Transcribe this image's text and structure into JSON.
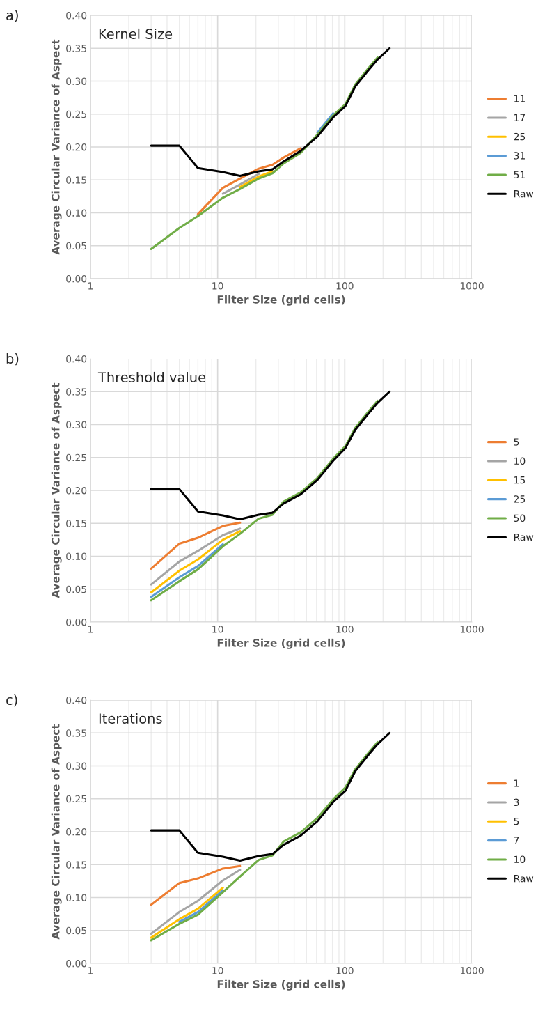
{
  "chart_data": [
    {
      "type": "line",
      "title": "Kernel Size",
      "annotations": [
        "a)"
      ],
      "xlabel": "Filter Size (grid cells)",
      "ylabel": "Average Circular Variance of Aspect",
      "log": "x",
      "xlim": [
        1,
        1000
      ],
      "xticks": [
        1,
        10,
        100,
        1000
      ],
      "ylim": [
        0,
        0.4
      ],
      "yticks": [
        {
          "value": 0,
          "label": "0.00"
        },
        {
          "value": 0.05,
          "label": "0.05"
        },
        {
          "value": 0.1,
          "label": "0.10"
        },
        {
          "value": 0.15,
          "label": "0.15"
        },
        {
          "value": 0.2,
          "label": "0.20"
        },
        {
          "value": 0.25,
          "label": "0.25"
        },
        {
          "value": 0.3,
          "label": "0.30"
        },
        {
          "value": 0.35,
          "label": "0.35"
        },
        {
          "value": 0.4,
          "label": "0.40"
        }
      ],
      "grid": true,
      "legend": "right",
      "line_style": "solid",
      "marker": "none",
      "x": [
        3,
        5,
        7,
        11,
        15,
        21,
        27,
        33,
        45,
        61,
        81,
        101,
        121,
        151,
        181,
        225
      ],
      "series": [
        {
          "name": "11",
          "color": "#ed7d31",
          "values": [
            null,
            null,
            0.098,
            0.138,
            0.152,
            0.167,
            0.173,
            0.184,
            0.198,
            null,
            null,
            null,
            null,
            null,
            null,
            null
          ]
        },
        {
          "name": "17",
          "color": "#a5a5a5",
          "values": [
            null,
            null,
            null,
            0.129,
            0.143,
            0.159,
            null,
            null,
            null,
            null,
            null,
            null,
            null,
            null,
            null,
            null
          ]
        },
        {
          "name": "25",
          "color": "#ffc000",
          "values": [
            null,
            null,
            null,
            null,
            0.139,
            0.155,
            0.163,
            null,
            null,
            null,
            null,
            null,
            null,
            null,
            null,
            null
          ]
        },
        {
          "name": "31",
          "color": "#5b9bd5",
          "values": [
            null,
            null,
            null,
            null,
            null,
            null,
            null,
            null,
            null,
            0.222,
            0.251,
            null,
            null,
            null,
            null,
            null
          ]
        },
        {
          "name": "51",
          "color": "#70ad47",
          "values": [
            0.045,
            0.077,
            0.095,
            0.123,
            0.136,
            0.152,
            0.16,
            0.175,
            0.191,
            0.219,
            0.248,
            0.265,
            0.295,
            0.318,
            0.336,
            null
          ]
        },
        {
          "name": "Raw",
          "color": "#000000",
          "values": [
            0.202,
            0.202,
            0.168,
            0.162,
            0.156,
            0.163,
            0.166,
            0.178,
            0.194,
            0.216,
            0.245,
            0.262,
            0.292,
            0.315,
            0.333,
            0.35
          ]
        }
      ]
    },
    {
      "type": "line",
      "title": "Threshold value",
      "annotations": [
        "b)"
      ],
      "xlabel": "Filter Size (grid cells)",
      "ylabel": "Average Circular Variance of Aspect",
      "log": "x",
      "xlim": [
        1,
        1000
      ],
      "xticks": [
        1,
        10,
        100,
        1000
      ],
      "ylim": [
        0,
        0.4
      ],
      "yticks": [
        {
          "value": 0,
          "label": "0.00"
        },
        {
          "value": 0.05,
          "label": "0.05"
        },
        {
          "value": 0.1,
          "label": "0.10"
        },
        {
          "value": 0.15,
          "label": "0.15"
        },
        {
          "value": 0.2,
          "label": "0.20"
        },
        {
          "value": 0.25,
          "label": "0.25"
        },
        {
          "value": 0.3,
          "label": "0.30"
        },
        {
          "value": 0.35,
          "label": "0.35"
        },
        {
          "value": 0.4,
          "label": "0.40"
        }
      ],
      "grid": true,
      "legend": "right",
      "line_style": "solid",
      "marker": "none",
      "x": [
        3,
        5,
        7,
        11,
        15,
        21,
        27,
        33,
        45,
        61,
        81,
        101,
        121,
        151,
        181,
        225
      ],
      "series": [
        {
          "name": "5",
          "color": "#ed7d31",
          "values": [
            0.081,
            0.119,
            0.128,
            0.146,
            0.151,
            null,
            null,
            null,
            null,
            null,
            null,
            null,
            null,
            null,
            null,
            null
          ]
        },
        {
          "name": "10",
          "color": "#a5a5a5",
          "values": [
            0.057,
            0.092,
            0.108,
            0.132,
            0.142,
            null,
            null,
            null,
            null,
            null,
            null,
            null,
            null,
            null,
            null,
            null
          ]
        },
        {
          "name": "15",
          "color": "#ffc000",
          "values": [
            0.045,
            0.078,
            0.095,
            0.125,
            0.138,
            null,
            null,
            null,
            null,
            null,
            null,
            null,
            null,
            null,
            null,
            null
          ]
        },
        {
          "name": "25",
          "color": "#5b9bd5",
          "values": [
            0.038,
            0.068,
            0.085,
            0.118,
            null,
            null,
            null,
            null,
            null,
            null,
            null,
            null,
            null,
            null,
            null,
            null
          ]
        },
        {
          "name": "50",
          "color": "#70ad47",
          "values": [
            0.033,
            0.062,
            0.08,
            0.115,
            0.134,
            0.157,
            0.163,
            0.183,
            0.197,
            0.219,
            0.248,
            0.267,
            0.295,
            0.318,
            0.336,
            null
          ]
        },
        {
          "name": "Raw",
          "color": "#000000",
          "values": [
            0.202,
            0.202,
            0.168,
            0.162,
            0.156,
            0.163,
            0.166,
            0.18,
            0.194,
            0.216,
            0.245,
            0.264,
            0.292,
            0.315,
            0.333,
            0.35
          ]
        }
      ]
    },
    {
      "type": "line",
      "title": "Iterations",
      "annotations": [
        "c)"
      ],
      "xlabel": "Filter Size (grid cells)",
      "ylabel": "Average Circular Variance of Aspect",
      "log": "x",
      "xlim": [
        1,
        1000
      ],
      "xticks": [
        1,
        10,
        100,
        1000
      ],
      "ylim": [
        0,
        0.4
      ],
      "yticks": [
        {
          "value": 0,
          "label": "0.00"
        },
        {
          "value": 0.05,
          "label": "0.05"
        },
        {
          "value": 0.1,
          "label": "0.10"
        },
        {
          "value": 0.15,
          "label": "0.15"
        },
        {
          "value": 0.2,
          "label": "0.20"
        },
        {
          "value": 0.25,
          "label": "0.25"
        },
        {
          "value": 0.3,
          "label": "0.30"
        },
        {
          "value": 0.35,
          "label": "0.35"
        },
        {
          "value": 0.4,
          "label": "0.40"
        }
      ],
      "grid": true,
      "legend": "right",
      "line_style": "solid",
      "marker": "none",
      "x": [
        3,
        5,
        7,
        11,
        15,
        21,
        27,
        33,
        45,
        61,
        81,
        101,
        121,
        151,
        181,
        225
      ],
      "series": [
        {
          "name": "1",
          "color": "#ed7d31",
          "values": [
            0.089,
            0.122,
            0.129,
            0.144,
            0.148,
            null,
            null,
            null,
            null,
            null,
            null,
            null,
            null,
            null,
            null,
            null
          ]
        },
        {
          "name": "3",
          "color": "#a5a5a5",
          "values": [
            0.045,
            0.078,
            0.095,
            0.126,
            0.142,
            null,
            null,
            null,
            null,
            null,
            null,
            null,
            null,
            null,
            null,
            null
          ]
        },
        {
          "name": "5",
          "color": "#ffc000",
          "values": [
            0.039,
            0.067,
            0.083,
            0.115,
            null,
            null,
            null,
            null,
            null,
            null,
            null,
            null,
            null,
            null,
            null,
            null
          ]
        },
        {
          "name": "7",
          "color": "#5b9bd5",
          "values": [
            null,
            0.063,
            0.078,
            0.111,
            null,
            null,
            null,
            null,
            null,
            null,
            null,
            null,
            null,
            null,
            null,
            null
          ]
        },
        {
          "name": "10",
          "color": "#70ad47",
          "values": [
            0.035,
            0.06,
            0.074,
            0.108,
            0.132,
            0.157,
            0.164,
            0.185,
            0.199,
            0.221,
            0.249,
            0.267,
            0.295,
            0.318,
            0.336,
            null
          ]
        },
        {
          "name": "Raw",
          "color": "#000000",
          "values": [
            0.202,
            0.202,
            0.168,
            0.162,
            0.156,
            0.163,
            0.166,
            0.18,
            0.194,
            0.216,
            0.245,
            0.262,
            0.292,
            0.315,
            0.333,
            0.35
          ]
        }
      ]
    }
  ]
}
